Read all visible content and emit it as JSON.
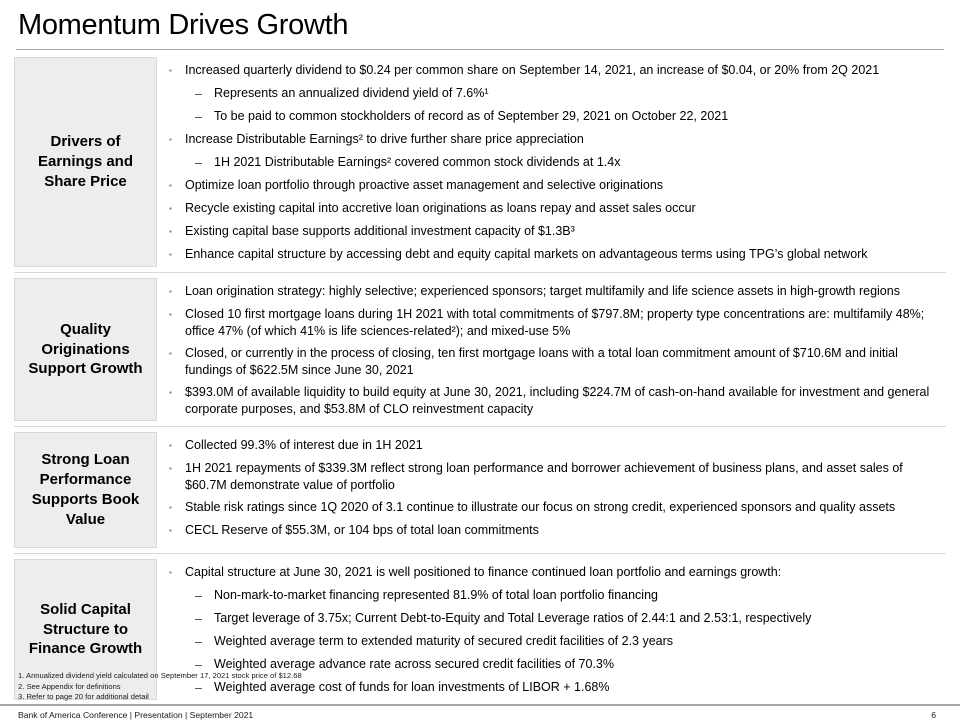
{
  "title": "Momentum Drives Growth",
  "bullets": {
    "level1_glyph": "▪",
    "level2_glyph": "–"
  },
  "colors": {
    "label_bg": "#ededed",
    "rule_gray": "#a6a6a6",
    "divider_gray": "#d9d9d9"
  },
  "sections": [
    {
      "label": "Drivers of Earnings and Share Price",
      "items": [
        {
          "level": 1,
          "text": "Increased quarterly dividend to $0.24 per common share on September 14, 2021, an increase of $0.04, or 20% from 2Q 2021"
        },
        {
          "level": 2,
          "text": "Represents an annualized dividend yield of 7.6%¹"
        },
        {
          "level": 2,
          "text": "To be paid to common stockholders of record as of September 29, 2021 on October 22, 2021"
        },
        {
          "level": 1,
          "text": "Increase Distributable Earnings² to drive further share price appreciation"
        },
        {
          "level": 2,
          "text": "1H 2021 Distributable Earnings² covered common stock dividends at 1.4x"
        },
        {
          "level": 1,
          "text": "Optimize loan portfolio through proactive asset management and selective originations"
        },
        {
          "level": 1,
          "text": "Recycle existing capital into accretive loan originations as loans repay and asset sales occur"
        },
        {
          "level": 1,
          "text": "Existing capital base supports additional investment capacity of $1.3B³"
        },
        {
          "level": 1,
          "text": "Enhance capital structure by accessing debt and equity capital markets on advantageous terms using TPG’s global network"
        }
      ]
    },
    {
      "label": "Quality Originations Support Growth",
      "items": [
        {
          "level": 1,
          "text": "Loan origination strategy: highly selective; experienced sponsors; target multifamily and life science assets in high-growth regions"
        },
        {
          "level": 1,
          "text": "Closed 10 first mortgage loans during 1H 2021 with total commitments of $797.8M; property type concentrations are: multifamily 48%; office 47% (of which 41% is life sciences-related²); and mixed-use 5%"
        },
        {
          "level": 1,
          "text": "Closed, or currently in the process of closing, ten first mortgage loans with a total loan commitment amount of $710.6M and initial fundings of $622.5M since June 30, 2021"
        },
        {
          "level": 1,
          "text": "$393.0M of available liquidity to build equity at June 30, 2021, including $224.7M of cash-on-hand available for investment and general corporate purposes, and $53.8M of CLO reinvestment capacity"
        }
      ]
    },
    {
      "label": "Strong Loan Performance Supports Book Value",
      "items": [
        {
          "level": 1,
          "text": "Collected 99.3% of interest due in 1H 2021"
        },
        {
          "level": 1,
          "text": "1H 2021 repayments of $339.3M reflect strong loan performance and borrower achievement of business plans, and asset sales of $60.7M demonstrate value of portfolio"
        },
        {
          "level": 1,
          "text": "Stable risk ratings since 1Q 2020 of 3.1 continue to illustrate our focus on strong credit, experienced sponsors and quality assets"
        },
        {
          "level": 1,
          "text": "CECL Reserve of $55.3M, or 104 bps of total loan commitments"
        }
      ]
    },
    {
      "label": "Solid Capital Structure to Finance Growth",
      "items": [
        {
          "level": 1,
          "text": "Capital structure at June 30, 2021 is well positioned to finance continued loan portfolio and earnings growth:"
        },
        {
          "level": 2,
          "text": "Non-mark-to-market financing represented 81.9% of total loan portfolio financing"
        },
        {
          "level": 2,
          "text": "Target leverage of 3.75x; Current Debt-to-Equity and Total Leverage ratios of 2.44:1 and 2.53:1, respectively"
        },
        {
          "level": 2,
          "text": "Weighted average term to extended maturity of secured credit facilities of 2.3 years"
        },
        {
          "level": 2,
          "text": "Weighted average advance rate across secured credit facilities of 70.3%"
        },
        {
          "level": 2,
          "text": "Weighted average cost of funds for loan investments of LIBOR + 1.68%"
        }
      ]
    }
  ],
  "footnotes": [
    "1. Annualized dividend yield calculated on September 17, 2021 stock price of $12.68",
    "2. See Appendix for definitions",
    "3. Refer to page 20 for additional detail"
  ],
  "footer": {
    "left": "Bank of America Conference | Presentation | September 2021",
    "page": "6"
  }
}
